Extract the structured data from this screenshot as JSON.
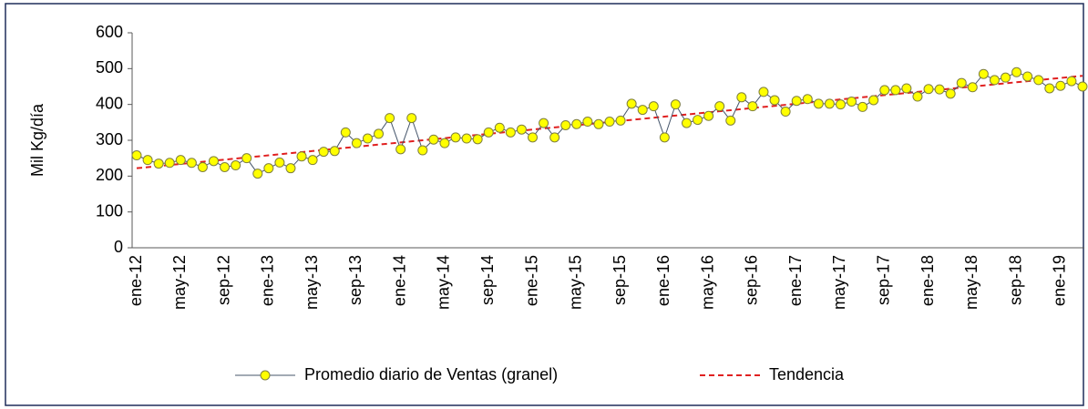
{
  "chart_data": {
    "type": "line",
    "y_label": "Mil  Kg/día",
    "categories": [
      "ene-12",
      null,
      null,
      null,
      "may-12",
      null,
      null,
      null,
      "sep-12",
      null,
      null,
      null,
      "ene-13",
      null,
      null,
      null,
      "may-13",
      null,
      null,
      null,
      "sep-13",
      null,
      null,
      null,
      "ene-14",
      null,
      null,
      null,
      "may-14",
      null,
      null,
      null,
      "sep-14",
      null,
      null,
      null,
      "ene-15",
      null,
      null,
      null,
      "may-15",
      null,
      null,
      null,
      "sep-15",
      null,
      null,
      null,
      "ene-16",
      null,
      null,
      null,
      "may-16",
      null,
      null,
      null,
      "sep-16",
      null,
      null,
      null,
      "ene-17",
      null,
      null,
      null,
      "may-17",
      null,
      null,
      null,
      "sep-17",
      null,
      null,
      null,
      "ene-18",
      null,
      null,
      null,
      "may-18",
      null,
      null,
      null,
      "sep-18",
      null,
      null,
      null,
      "ene-19",
      null,
      null
    ],
    "series": [
      {
        "name": "Promedio diario de Ventas (granel)",
        "color": "#44546a",
        "marker": "circle",
        "marker_color": "#ffff00",
        "line_style": "solid",
        "values": [
          258,
          245,
          235,
          237,
          245,
          237,
          225,
          242,
          225,
          230,
          250,
          207,
          222,
          238,
          222,
          255,
          245,
          268,
          270,
          322,
          292,
          305,
          318,
          362,
          275,
          362,
          272,
          302,
          292,
          308,
          305,
          303,
          322,
          335,
          322,
          330,
          308,
          348,
          308,
          342,
          345,
          352,
          345,
          352,
          355,
          402,
          385,
          395,
          308,
          400,
          348,
          357,
          368,
          395,
          355,
          420,
          395,
          435,
          412,
          380,
          410,
          415,
          402,
          402,
          400,
          408,
          393,
          412,
          440,
          440,
          445,
          422,
          443,
          442,
          430,
          460,
          448,
          485,
          468,
          475,
          490,
          478,
          468,
          445,
          452,
          465,
          450
        ]
      },
      {
        "name": "Tendencia",
        "color": "#e02020",
        "line_style": "dashed",
        "values": [
          222,
          225,
          228,
          231,
          234,
          237,
          240,
          243,
          246,
          249,
          252,
          255,
          258,
          261,
          264,
          267,
          270,
          273,
          276,
          279,
          282,
          285,
          288,
          291,
          294,
          297,
          300,
          303,
          306,
          309,
          312,
          315,
          318,
          321,
          324,
          327,
          330,
          333,
          336,
          339,
          342,
          345,
          348,
          351,
          354,
          357,
          360,
          363,
          366,
          369,
          372,
          375,
          378,
          381,
          384,
          387,
          390,
          393,
          396,
          399,
          402,
          405,
          408,
          411,
          414,
          417,
          420,
          423,
          426,
          429,
          432,
          435,
          438,
          441,
          444,
          447,
          450,
          453,
          456,
          459,
          462,
          465,
          468,
          471,
          474,
          477,
          480
        ]
      }
    ],
    "ylim": [
      0,
      600
    ],
    "yticks": [
      0,
      100,
      200,
      300,
      400,
      500,
      600
    ],
    "legend": "bottom"
  }
}
